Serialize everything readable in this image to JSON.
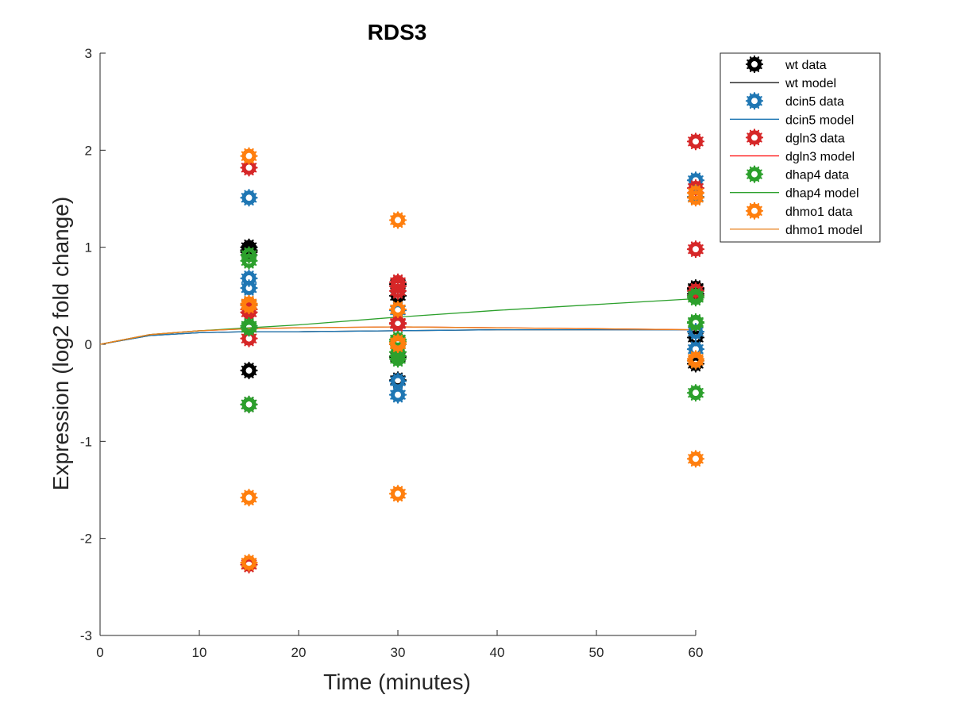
{
  "chart_data": {
    "type": "scatter",
    "title": "RDS3",
    "xlabel": "Time (minutes)",
    "ylabel": "Expression (log2 fold change)",
    "xlim": [
      0,
      60
    ],
    "ylim": [
      -3,
      3
    ],
    "xticks": [
      "0",
      "10",
      "20",
      "30",
      "40",
      "50",
      "60"
    ],
    "yticks": [
      "-3",
      "-2",
      "-1",
      "0",
      "1",
      "2",
      "3"
    ],
    "grid": false,
    "legend_position": "top-right-outside",
    "series": [
      {
        "name": "wt data",
        "kind": "data",
        "color": "#000000",
        "points": [
          [
            15,
            1.0
          ],
          [
            15,
            0.97
          ],
          [
            15,
            -0.27
          ],
          [
            15,
            -0.62
          ],
          [
            15,
            0.95
          ],
          [
            30,
            0.62
          ],
          [
            30,
            0.5
          ],
          [
            30,
            -0.37
          ],
          [
            30,
            0.0
          ],
          [
            30,
            -0.13
          ],
          [
            60,
            0.58
          ],
          [
            60,
            0.52
          ],
          [
            60,
            0.07
          ],
          [
            60,
            -0.2
          ],
          [
            60,
            0.57
          ]
        ]
      },
      {
        "name": "wt model",
        "kind": "model",
        "color": "#000000",
        "x": [
          0,
          5,
          10,
          15,
          20,
          30,
          40,
          50,
          60
        ],
        "y": [
          0,
          0.09,
          0.12,
          0.13,
          0.13,
          0.14,
          0.15,
          0.15,
          0.15
        ]
      },
      {
        "name": "dcin5 data",
        "kind": "data",
        "color": "#1f77b4",
        "points": [
          [
            15,
            1.51
          ],
          [
            15,
            0.68
          ],
          [
            15,
            0.58
          ],
          [
            15,
            0.41
          ],
          [
            15,
            0.17
          ],
          [
            30,
            -0.38
          ],
          [
            30,
            -0.52
          ],
          [
            30,
            0.21
          ],
          [
            30,
            0.35
          ],
          [
            30,
            0.6
          ],
          [
            60,
            1.69
          ],
          [
            60,
            1.52
          ],
          [
            60,
            0.13
          ],
          [
            60,
            -0.05
          ],
          [
            60,
            -0.17
          ]
        ]
      },
      {
        "name": "dcin5 model",
        "kind": "model",
        "color": "#1f77b4",
        "x": [
          0,
          5,
          10,
          15,
          20,
          30,
          40,
          50,
          60
        ],
        "y": [
          0,
          0.09,
          0.12,
          0.13,
          0.13,
          0.14,
          0.15,
          0.15,
          0.15
        ]
      },
      {
        "name": "dgln3 data",
        "kind": "data",
        "color": "#d62728",
        "points": [
          [
            15,
            1.82
          ],
          [
            15,
            0.33
          ],
          [
            15,
            0.36
          ],
          [
            15,
            0.06
          ],
          [
            15,
            -2.27
          ],
          [
            30,
            0.64
          ],
          [
            30,
            0.6
          ],
          [
            30,
            0.55
          ],
          [
            30,
            0.22
          ],
          [
            30,
            0.21
          ],
          [
            60,
            2.09
          ],
          [
            60,
            1.61
          ],
          [
            60,
            0.98
          ],
          [
            60,
            0.55
          ],
          [
            60,
            0.5
          ]
        ]
      },
      {
        "name": "dgln3 model",
        "kind": "model",
        "color": "#ff0000",
        "x": [
          0,
          5,
          10,
          15,
          20,
          30,
          40,
          50,
          60
        ],
        "y": [
          0,
          0.1,
          0.14,
          0.16,
          0.17,
          0.18,
          0.17,
          0.16,
          0.15
        ]
      },
      {
        "name": "dhap4 data",
        "kind": "data",
        "color": "#2ca02c",
        "points": [
          [
            15,
            0.92
          ],
          [
            15,
            0.86
          ],
          [
            15,
            0.19
          ],
          [
            15,
            0.17
          ],
          [
            15,
            -0.62
          ],
          [
            30,
            -0.08
          ],
          [
            30,
            -0.12
          ],
          [
            30,
            0.05
          ],
          [
            30,
            0.03
          ],
          [
            30,
            -0.15
          ],
          [
            60,
            0.48
          ],
          [
            60,
            0.23
          ],
          [
            60,
            0.22
          ],
          [
            60,
            -0.5
          ],
          [
            60,
            0.5
          ]
        ]
      },
      {
        "name": "dhap4 model",
        "kind": "model",
        "color": "#2ca02c",
        "x": [
          0,
          5,
          10,
          15,
          20,
          30,
          40,
          50,
          60
        ],
        "y": [
          0,
          0.1,
          0.14,
          0.17,
          0.2,
          0.28,
          0.35,
          0.41,
          0.47
        ]
      },
      {
        "name": "dhmo1 data",
        "kind": "data",
        "color": "#ff7f0e",
        "points": [
          [
            15,
            1.94
          ],
          [
            15,
            0.42
          ],
          [
            15,
            -1.58
          ],
          [
            15,
            -2.25
          ],
          [
            15,
            0.4
          ],
          [
            30,
            1.28
          ],
          [
            30,
            0.36
          ],
          [
            30,
            0.0
          ],
          [
            30,
            -1.54
          ],
          [
            30,
            0.02
          ],
          [
            60,
            1.56
          ],
          [
            60,
            1.51
          ],
          [
            60,
            -0.15
          ],
          [
            60,
            -1.18
          ],
          [
            60,
            -0.17
          ]
        ]
      },
      {
        "name": "dhmo1 model",
        "kind": "model",
        "color": "#e8821e",
        "x": [
          0,
          5,
          10,
          15,
          20,
          30,
          40,
          50,
          60
        ],
        "y": [
          0,
          0.1,
          0.14,
          0.16,
          0.17,
          0.18,
          0.17,
          0.16,
          0.15
        ]
      }
    ]
  }
}
